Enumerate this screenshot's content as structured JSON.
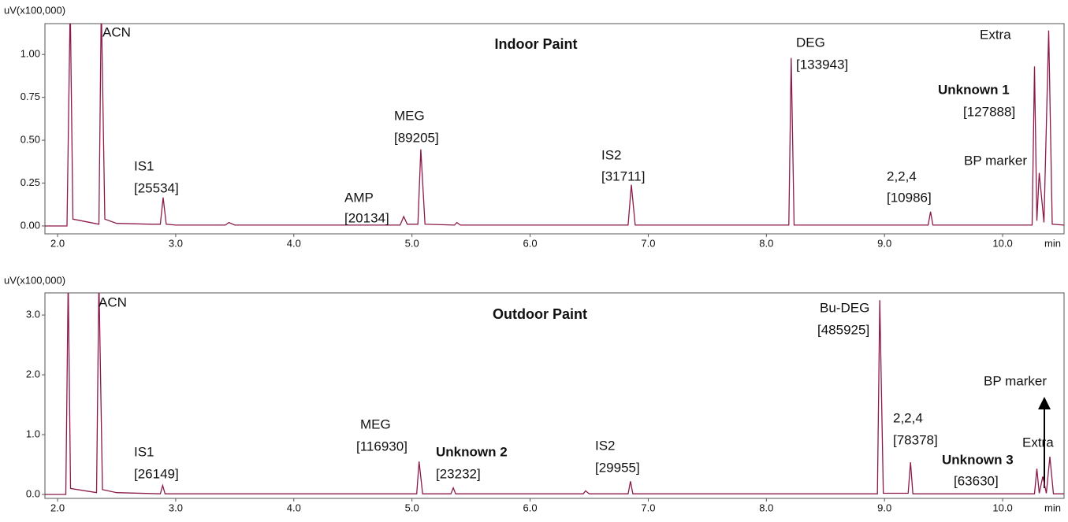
{
  "chart_data": [
    {
      "type": "line",
      "title": "Indoor Paint",
      "y_label": "uV(x100,000)",
      "x_label": "min",
      "color": "#8b1a4a",
      "xlim": [
        1.893,
        10.52
      ],
      "ylim": [
        -0.046,
        1.18
      ],
      "xticks": [
        {
          "value": 2,
          "label": "2.0"
        },
        {
          "value": 3,
          "label": "3.0"
        },
        {
          "value": 4,
          "label": "4.0"
        },
        {
          "value": 5,
          "label": "5.0"
        },
        {
          "value": 6,
          "label": "6.0"
        },
        {
          "value": 7,
          "label": "7.0"
        },
        {
          "value": 8,
          "label": "8.0"
        },
        {
          "value": 9,
          "label": "9.0"
        },
        {
          "value": 10,
          "label": "10.0"
        }
      ],
      "yticks": [
        {
          "value": 0,
          "label": "0.00"
        },
        {
          "value": 0.25,
          "label": "0.25"
        },
        {
          "value": 0.5,
          "label": "0.50"
        },
        {
          "value": 0.75,
          "label": "0.75"
        },
        {
          "value": 1,
          "label": "1.00"
        }
      ],
      "x": [
        1.89,
        2.08,
        2.107,
        2.13,
        2.35,
        2.37,
        2.4,
        2.5,
        2.8,
        2.87,
        2.894,
        2.92,
        3.0,
        3.42,
        3.45,
        3.5,
        4.9,
        4.93,
        4.96,
        5.05,
        5.075,
        5.11,
        5.36,
        5.38,
        5.41,
        6.83,
        6.857,
        6.89,
        8.19,
        8.21,
        8.235,
        9.37,
        9.39,
        9.41,
        10.25,
        10.27,
        10.29,
        10.31,
        10.35,
        10.39,
        10.42,
        10.52
      ],
      "values": [
        0,
        0,
        1.3,
        0.04,
        0.01,
        1.3,
        0.04,
        0.015,
        0.01,
        0.01,
        0.166,
        0.01,
        0.005,
        0.005,
        0.02,
        0.005,
        0.005,
        0.055,
        0.01,
        0.01,
        0.447,
        0.01,
        0.005,
        0.02,
        0.005,
        0.005,
        0.24,
        0.005,
        0.005,
        0.98,
        0.005,
        0.005,
        0.083,
        0.005,
        0.005,
        0.93,
        0.03,
        0.31,
        0.02,
        1.14,
        0.01,
        0.005
      ],
      "annotations": [
        {
          "text": "ACN"
        },
        {
          "text": "IS1",
          "area": "[25534]"
        },
        {
          "text": "AMP",
          "area": "[20134]"
        },
        {
          "text": "MEG",
          "area": "[89205]"
        },
        {
          "text": "IS2",
          "area": "[31711]"
        },
        {
          "text": "DEG",
          "area": "[133943]"
        },
        {
          "text": "2,2,4",
          "area": "[10986]"
        },
        {
          "text": "Unknown 1",
          "area": "[127888]",
          "bold": true
        },
        {
          "text": "BP marker"
        },
        {
          "text": "Extra"
        }
      ]
    },
    {
      "type": "line",
      "title": "Outdoor Paint",
      "y_label": "uV(x100,000)",
      "x_label": "min",
      "color": "#8b1a4a",
      "xlim": [
        1.893,
        10.52
      ],
      "ylim": [
        -0.066,
        3.37
      ],
      "xticks": [
        {
          "value": 2,
          "label": "2.0"
        },
        {
          "value": 3,
          "label": "3.0"
        },
        {
          "value": 4,
          "label": "4.0"
        },
        {
          "value": 5,
          "label": "5.0"
        },
        {
          "value": 6,
          "label": "6.0"
        },
        {
          "value": 7,
          "label": "7.0"
        },
        {
          "value": 8,
          "label": "8.0"
        },
        {
          "value": 9,
          "label": "9.0"
        },
        {
          "value": 10,
          "label": "10.0"
        }
      ],
      "yticks": [
        {
          "value": 0,
          "label": "0.0"
        },
        {
          "value": 1,
          "label": "1.0"
        },
        {
          "value": 2,
          "label": "2.0"
        },
        {
          "value": 3,
          "label": "3.0"
        }
      ],
      "x": [
        1.89,
        2.07,
        2.09,
        2.11,
        2.33,
        2.35,
        2.38,
        2.5,
        2.87,
        2.89,
        2.91,
        5.04,
        5.06,
        5.09,
        5.33,
        5.35,
        5.37,
        6.45,
        6.47,
        6.5,
        6.83,
        6.85,
        6.87,
        8.94,
        8.96,
        8.99,
        9.2,
        9.22,
        9.24,
        10.27,
        10.29,
        10.31,
        10.34,
        10.37,
        10.4,
        10.43,
        10.52
      ],
      "values": [
        0,
        0,
        3.6,
        0.1,
        0.03,
        3.6,
        0.08,
        0.03,
        0.01,
        0.15,
        0.01,
        0.01,
        0.55,
        0.01,
        0.01,
        0.11,
        0.01,
        0.01,
        0.06,
        0.01,
        0.01,
        0.22,
        0.01,
        0.01,
        3.25,
        0.02,
        0.02,
        0.54,
        0.01,
        0.01,
        0.43,
        0.02,
        0.3,
        0.02,
        0.63,
        0.01,
        0.01
      ],
      "annotations": [
        {
          "text": "ACN"
        },
        {
          "text": "IS1",
          "area": "[26149]"
        },
        {
          "text": "MEG",
          "area": "[116930]"
        },
        {
          "text": "Unknown 2",
          "area": "[23232]",
          "bold": true
        },
        {
          "text": "IS2",
          "area": "[29955]"
        },
        {
          "text": "Bu-DEG",
          "area": "[485925]"
        },
        {
          "text": "2,2,4",
          "area": "[78378]"
        },
        {
          "text": "Unknown 3",
          "area": "[63630]",
          "bold": true
        },
        {
          "text": "BP marker"
        },
        {
          "text": "Extra"
        }
      ]
    }
  ]
}
